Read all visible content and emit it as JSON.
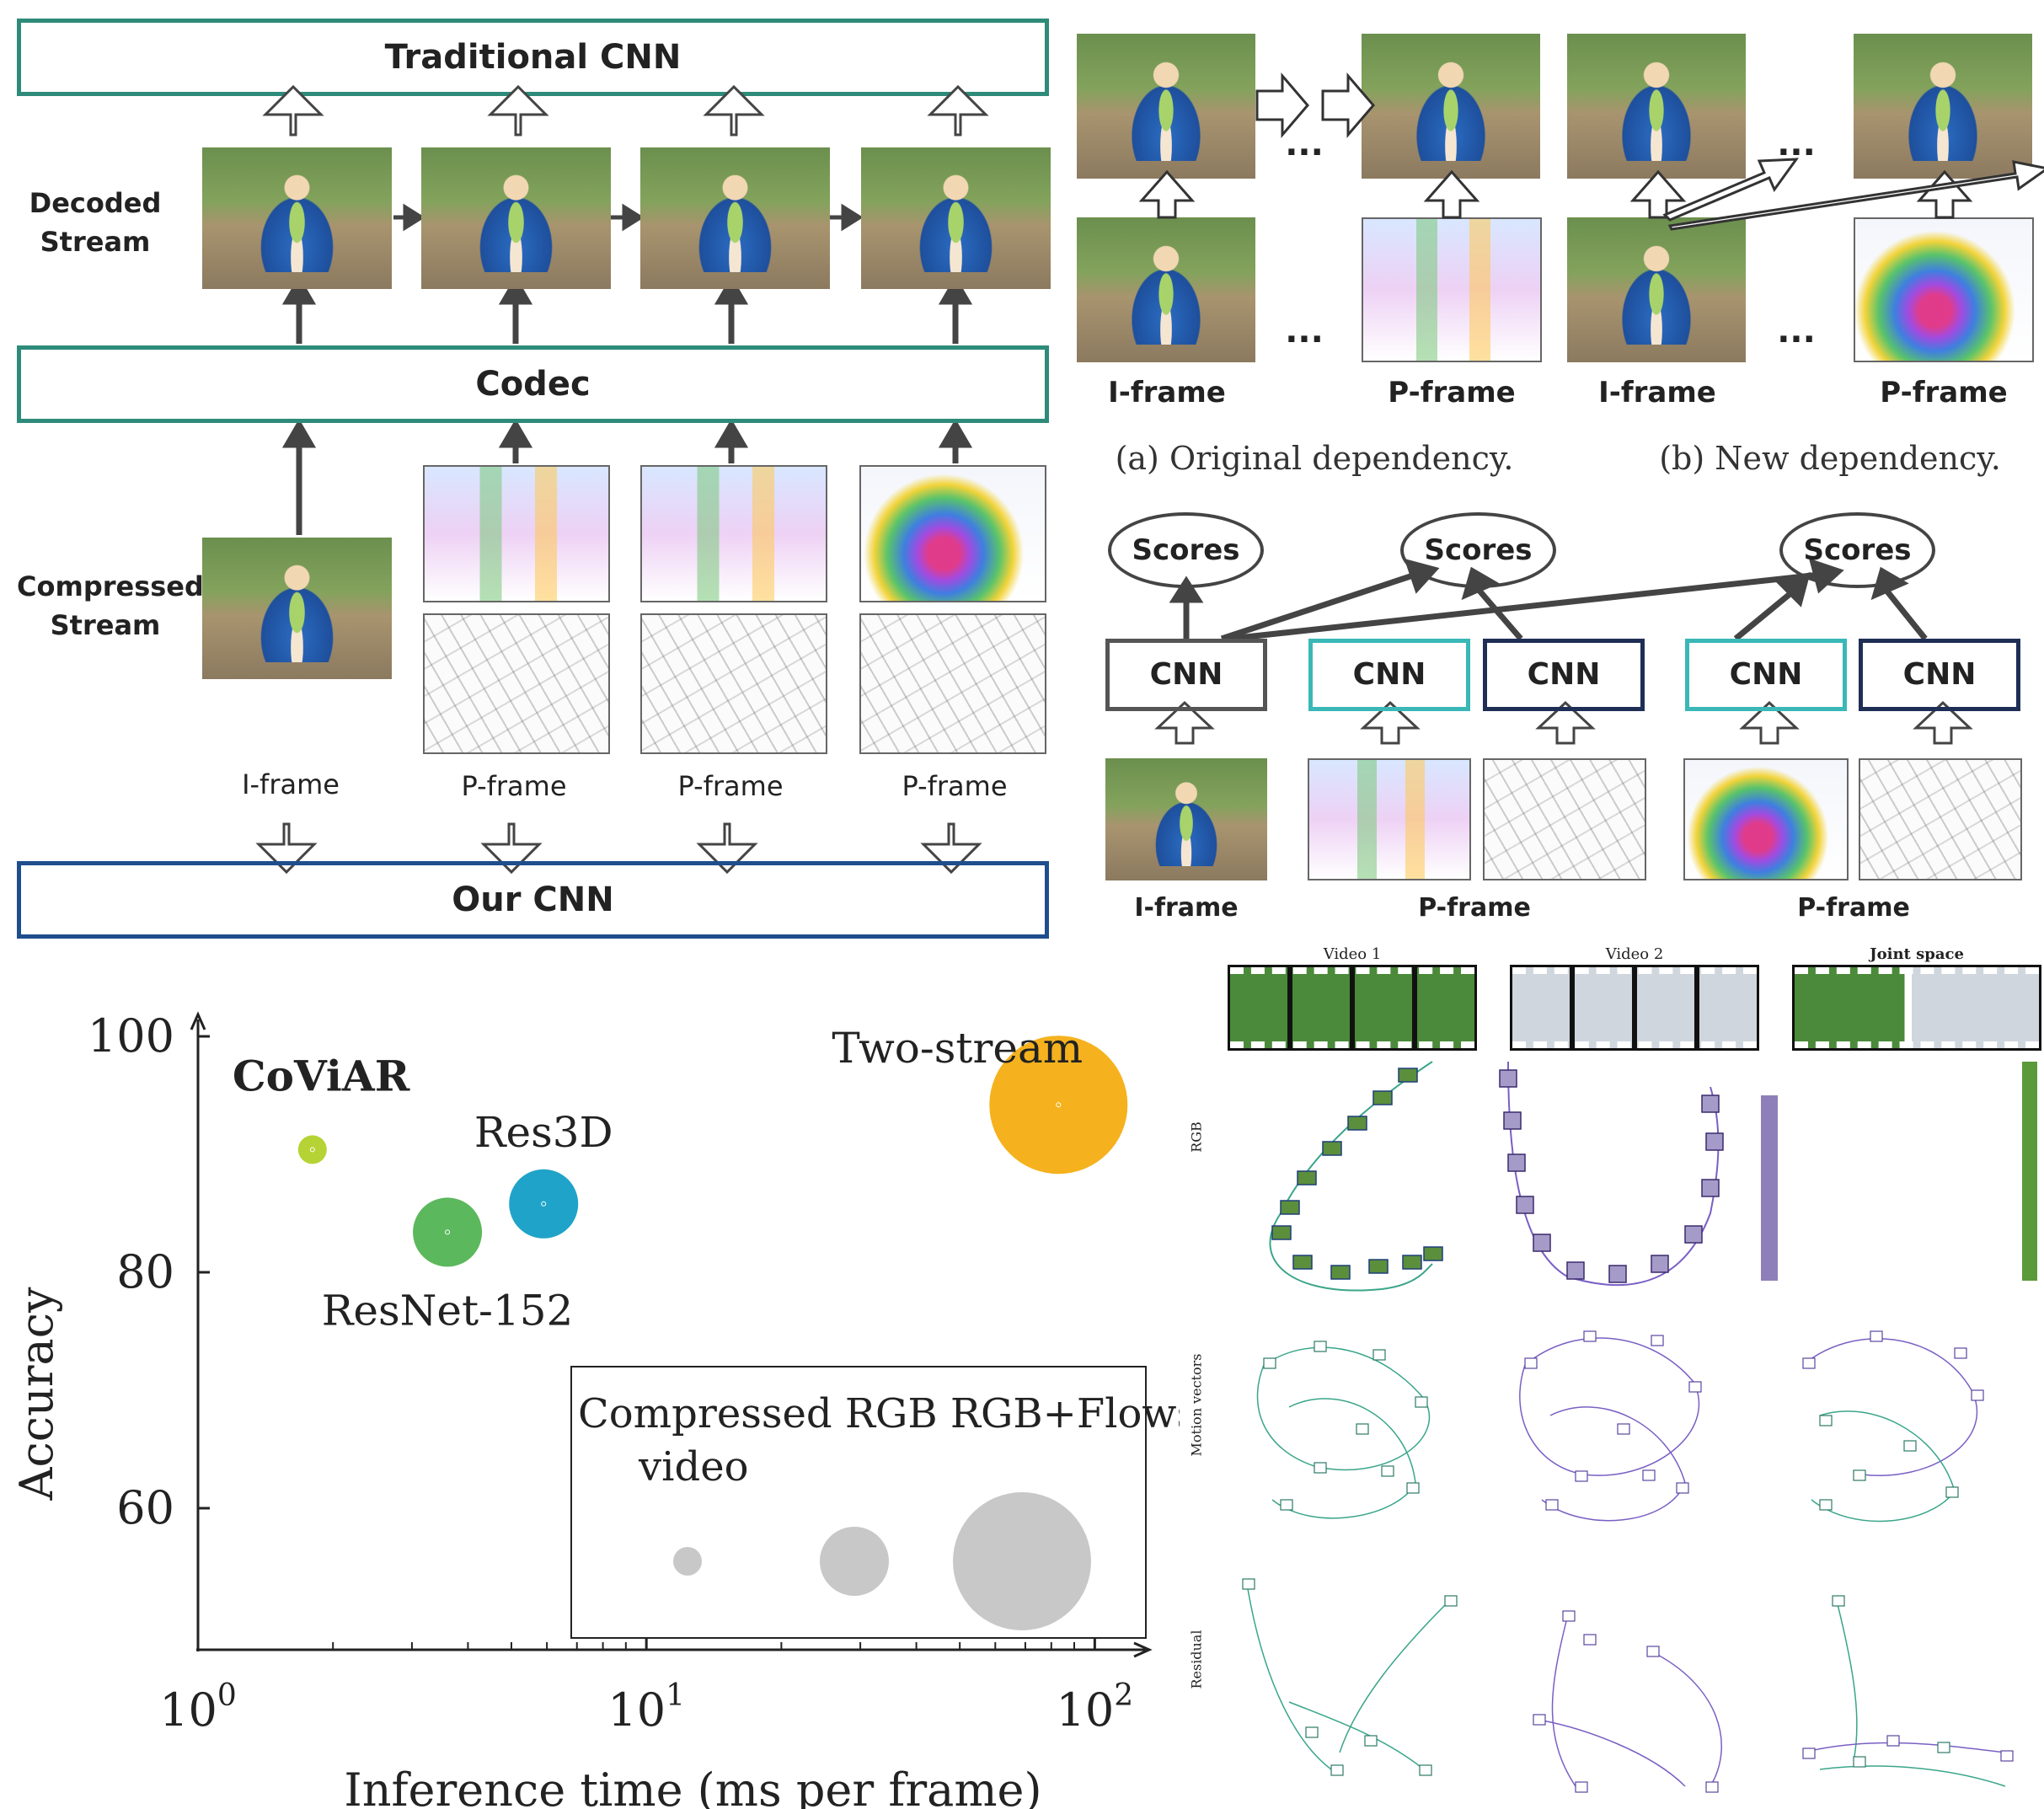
{
  "panel_a": {
    "top_box": "Traditional CNN",
    "decoded_label_1": "Decoded",
    "decoded_label_2": "Stream",
    "codec_box": "Codec",
    "compressed_label_1": "Compressed",
    "compressed_label_2": "Stream",
    "frame_labels": [
      "I-frame",
      "P-frame",
      "P-frame",
      "P-frame"
    ],
    "bottom_box": "Our CNN"
  },
  "panel_b": {
    "dots": "...",
    "labels": [
      "I-frame",
      "P-frame",
      "I-frame",
      "P-frame"
    ],
    "caption_a": "(a) Original dependency.",
    "caption_b": "(b) New dependency."
  },
  "panel_c": {
    "scores": [
      "Scores",
      "Scores",
      "Scores"
    ],
    "cnn": [
      "CNN",
      "CNN",
      "CNN",
      "CNN",
      "CNN"
    ],
    "labels": [
      "I-frame",
      "P-frame",
      "P-frame"
    ],
    "colors": {
      "gray": "#555555",
      "teal": "#3ab7b7",
      "navy": "#1f2e55"
    }
  },
  "panel_d": {
    "chart_data": {
      "type": "scatter",
      "xlabel": "Inference time (ms per frame)",
      "ylabel": "Accuracy",
      "xscale": "log",
      "xlim": [
        1,
        130
      ],
      "ylim": [
        48,
        100
      ],
      "xticks": [
        "10^0",
        "10^1",
        "10^2"
      ],
      "yticks": [
        60,
        80,
        100
      ],
      "points": [
        {
          "name": "CoViAR",
          "x": 1.8,
          "y": 90.4,
          "size": "Compressed video",
          "color": "#b5d334",
          "bold": true
        },
        {
          "name": "ResNet-152",
          "x": 3.6,
          "y": 83.4,
          "size": "RGB",
          "color": "#5cb85c",
          "bold": false
        },
        {
          "name": "Res3D",
          "x": 5.9,
          "y": 85.8,
          "size": "RGB",
          "color": "#1fa3c8",
          "bold": false
        },
        {
          "name": "Two-stream",
          "x": 83,
          "y": 94.2,
          "size": "RGB+Flows",
          "color": "#f5b21e",
          "bold": false
        }
      ],
      "legend": {
        "entries": [
          "Compressed video",
          "RGB",
          "RGB+Flows"
        ],
        "text_line1": "Compressed RGB RGB+Flows",
        "text_line2": "video",
        "position": "bottom-right",
        "color": "#c8c8c8"
      }
    }
  },
  "panel_e": {
    "col_titles": [
      "Video 1",
      "Video 2",
      "Joint space"
    ],
    "row_labels": [
      "RGB",
      "Motion vectors",
      "Residual"
    ],
    "colors": {
      "video1": "#3aa58a",
      "video2": "#7a5fc4"
    }
  }
}
